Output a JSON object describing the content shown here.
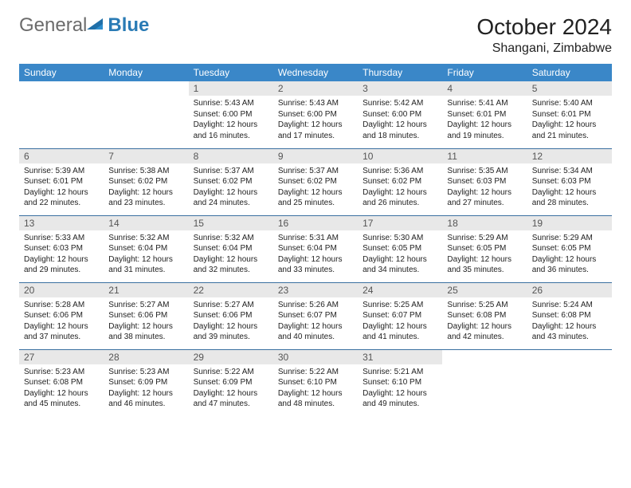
{
  "brand": {
    "part1": "General",
    "part2": "Blue"
  },
  "title": {
    "month": "October 2024",
    "location": "Shangani, Zimbabwe"
  },
  "styling": {
    "header_bg": "#3a87c8",
    "header_text": "#ffffff",
    "daynum_bg": "#e8e8e8",
    "daynum_text": "#555555",
    "cell_border": "#3a6fa0",
    "body_text": "#222222",
    "logo_gray": "#6b6b6b",
    "logo_blue": "#2a7bb5",
    "page_bg": "#ffffff",
    "month_fontsize": 28,
    "location_fontsize": 16,
    "header_fontsize": 12,
    "daynum_fontsize": 12,
    "body_fontsize": 10
  },
  "weekdays": [
    "Sunday",
    "Monday",
    "Tuesday",
    "Wednesday",
    "Thursday",
    "Friday",
    "Saturday"
  ],
  "weeks": [
    [
      {
        "empty": true
      },
      {
        "empty": true
      },
      {
        "day": "1",
        "sunrise": "Sunrise: 5:43 AM",
        "sunset": "Sunset: 6:00 PM",
        "dl1": "Daylight: 12 hours",
        "dl2": "and 16 minutes."
      },
      {
        "day": "2",
        "sunrise": "Sunrise: 5:43 AM",
        "sunset": "Sunset: 6:00 PM",
        "dl1": "Daylight: 12 hours",
        "dl2": "and 17 minutes."
      },
      {
        "day": "3",
        "sunrise": "Sunrise: 5:42 AM",
        "sunset": "Sunset: 6:00 PM",
        "dl1": "Daylight: 12 hours",
        "dl2": "and 18 minutes."
      },
      {
        "day": "4",
        "sunrise": "Sunrise: 5:41 AM",
        "sunset": "Sunset: 6:01 PM",
        "dl1": "Daylight: 12 hours",
        "dl2": "and 19 minutes."
      },
      {
        "day": "5",
        "sunrise": "Sunrise: 5:40 AM",
        "sunset": "Sunset: 6:01 PM",
        "dl1": "Daylight: 12 hours",
        "dl2": "and 21 minutes."
      }
    ],
    [
      {
        "day": "6",
        "sunrise": "Sunrise: 5:39 AM",
        "sunset": "Sunset: 6:01 PM",
        "dl1": "Daylight: 12 hours",
        "dl2": "and 22 minutes."
      },
      {
        "day": "7",
        "sunrise": "Sunrise: 5:38 AM",
        "sunset": "Sunset: 6:02 PM",
        "dl1": "Daylight: 12 hours",
        "dl2": "and 23 minutes."
      },
      {
        "day": "8",
        "sunrise": "Sunrise: 5:37 AM",
        "sunset": "Sunset: 6:02 PM",
        "dl1": "Daylight: 12 hours",
        "dl2": "and 24 minutes."
      },
      {
        "day": "9",
        "sunrise": "Sunrise: 5:37 AM",
        "sunset": "Sunset: 6:02 PM",
        "dl1": "Daylight: 12 hours",
        "dl2": "and 25 minutes."
      },
      {
        "day": "10",
        "sunrise": "Sunrise: 5:36 AM",
        "sunset": "Sunset: 6:02 PM",
        "dl1": "Daylight: 12 hours",
        "dl2": "and 26 minutes."
      },
      {
        "day": "11",
        "sunrise": "Sunrise: 5:35 AM",
        "sunset": "Sunset: 6:03 PM",
        "dl1": "Daylight: 12 hours",
        "dl2": "and 27 minutes."
      },
      {
        "day": "12",
        "sunrise": "Sunrise: 5:34 AM",
        "sunset": "Sunset: 6:03 PM",
        "dl1": "Daylight: 12 hours",
        "dl2": "and 28 minutes."
      }
    ],
    [
      {
        "day": "13",
        "sunrise": "Sunrise: 5:33 AM",
        "sunset": "Sunset: 6:03 PM",
        "dl1": "Daylight: 12 hours",
        "dl2": "and 29 minutes."
      },
      {
        "day": "14",
        "sunrise": "Sunrise: 5:32 AM",
        "sunset": "Sunset: 6:04 PM",
        "dl1": "Daylight: 12 hours",
        "dl2": "and 31 minutes."
      },
      {
        "day": "15",
        "sunrise": "Sunrise: 5:32 AM",
        "sunset": "Sunset: 6:04 PM",
        "dl1": "Daylight: 12 hours",
        "dl2": "and 32 minutes."
      },
      {
        "day": "16",
        "sunrise": "Sunrise: 5:31 AM",
        "sunset": "Sunset: 6:04 PM",
        "dl1": "Daylight: 12 hours",
        "dl2": "and 33 minutes."
      },
      {
        "day": "17",
        "sunrise": "Sunrise: 5:30 AM",
        "sunset": "Sunset: 6:05 PM",
        "dl1": "Daylight: 12 hours",
        "dl2": "and 34 minutes."
      },
      {
        "day": "18",
        "sunrise": "Sunrise: 5:29 AM",
        "sunset": "Sunset: 6:05 PM",
        "dl1": "Daylight: 12 hours",
        "dl2": "and 35 minutes."
      },
      {
        "day": "19",
        "sunrise": "Sunrise: 5:29 AM",
        "sunset": "Sunset: 6:05 PM",
        "dl1": "Daylight: 12 hours",
        "dl2": "and 36 minutes."
      }
    ],
    [
      {
        "day": "20",
        "sunrise": "Sunrise: 5:28 AM",
        "sunset": "Sunset: 6:06 PM",
        "dl1": "Daylight: 12 hours",
        "dl2": "and 37 minutes."
      },
      {
        "day": "21",
        "sunrise": "Sunrise: 5:27 AM",
        "sunset": "Sunset: 6:06 PM",
        "dl1": "Daylight: 12 hours",
        "dl2": "and 38 minutes."
      },
      {
        "day": "22",
        "sunrise": "Sunrise: 5:27 AM",
        "sunset": "Sunset: 6:06 PM",
        "dl1": "Daylight: 12 hours",
        "dl2": "and 39 minutes."
      },
      {
        "day": "23",
        "sunrise": "Sunrise: 5:26 AM",
        "sunset": "Sunset: 6:07 PM",
        "dl1": "Daylight: 12 hours",
        "dl2": "and 40 minutes."
      },
      {
        "day": "24",
        "sunrise": "Sunrise: 5:25 AM",
        "sunset": "Sunset: 6:07 PM",
        "dl1": "Daylight: 12 hours",
        "dl2": "and 41 minutes."
      },
      {
        "day": "25",
        "sunrise": "Sunrise: 5:25 AM",
        "sunset": "Sunset: 6:08 PM",
        "dl1": "Daylight: 12 hours",
        "dl2": "and 42 minutes."
      },
      {
        "day": "26",
        "sunrise": "Sunrise: 5:24 AM",
        "sunset": "Sunset: 6:08 PM",
        "dl1": "Daylight: 12 hours",
        "dl2": "and 43 minutes."
      }
    ],
    [
      {
        "day": "27",
        "sunrise": "Sunrise: 5:23 AM",
        "sunset": "Sunset: 6:08 PM",
        "dl1": "Daylight: 12 hours",
        "dl2": "and 45 minutes."
      },
      {
        "day": "28",
        "sunrise": "Sunrise: 5:23 AM",
        "sunset": "Sunset: 6:09 PM",
        "dl1": "Daylight: 12 hours",
        "dl2": "and 46 minutes."
      },
      {
        "day": "29",
        "sunrise": "Sunrise: 5:22 AM",
        "sunset": "Sunset: 6:09 PM",
        "dl1": "Daylight: 12 hours",
        "dl2": "and 47 minutes."
      },
      {
        "day": "30",
        "sunrise": "Sunrise: 5:22 AM",
        "sunset": "Sunset: 6:10 PM",
        "dl1": "Daylight: 12 hours",
        "dl2": "and 48 minutes."
      },
      {
        "day": "31",
        "sunrise": "Sunrise: 5:21 AM",
        "sunset": "Sunset: 6:10 PM",
        "dl1": "Daylight: 12 hours",
        "dl2": "and 49 minutes."
      },
      {
        "empty": true
      },
      {
        "empty": true
      }
    ]
  ]
}
